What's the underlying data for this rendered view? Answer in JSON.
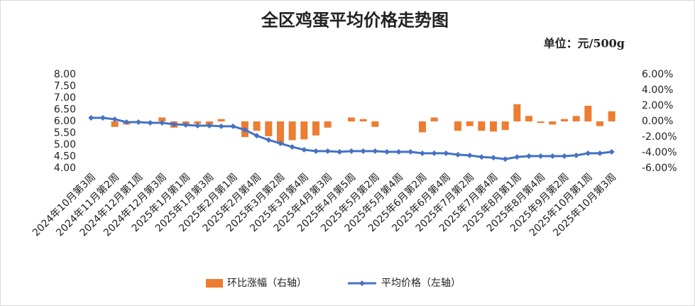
{
  "chart_data": {
    "type": "bar-line",
    "title": "全区鸡蛋平均价格走势图",
    "subtitle": "单位：元/500g",
    "categories": [
      "2024年10月第3周",
      null,
      "2024年11月第2周",
      null,
      "2024年12月第1周",
      null,
      "2024年12月第3周",
      null,
      "2025年1月第1周",
      null,
      "2025年1月第3周",
      null,
      "2025年2月第1周",
      null,
      "2025年2月第4周",
      null,
      "2025年3月第2周",
      null,
      "2025年3月第4周",
      null,
      "2025年4月第3周",
      null,
      "2025年4月第5周",
      null,
      "2025年5月第2周",
      null,
      "2025年5月第4周",
      null,
      "2025年6月第2周",
      null,
      "2025年6月第4周",
      null,
      "2025年7月第2周",
      null,
      "2025年7月第4周",
      null,
      "2025年8月第1周",
      null,
      "2025年8月第4周",
      null,
      "2025年9月第2周",
      null,
      "2025年10月第1周",
      null,
      "2025年10月第3周"
    ],
    "series": [
      {
        "name": "环比涨幅（右轴）",
        "type": "bar",
        "axis": "y2",
        "color": "#ed7d31",
        "values": [
          0,
          0,
          -0.7,
          -0.4,
          -0.1,
          0,
          0.5,
          -0.8,
          -0.4,
          -0.3,
          -0.4,
          0.3,
          0,
          -2.0,
          -1.2,
          -1.9,
          -2.8,
          -2.4,
          -2.3,
          -1.8,
          -0.8,
          0,
          0.5,
          0.3,
          -0.7,
          0,
          0,
          0,
          -1.4,
          0.5,
          0,
          -1.2,
          -0.6,
          -1.2,
          -1.3,
          -1.1,
          2.2,
          0.7,
          -0.2,
          -0.4,
          0.3,
          0.7,
          2.0,
          -0.6,
          1.3
        ]
      },
      {
        "name": "平均价格（左轴）",
        "type": "line",
        "axis": "y",
        "color": "#4472c4",
        "values": [
          6.15,
          6.15,
          6.09,
          5.97,
          5.97,
          5.94,
          5.94,
          5.88,
          5.85,
          5.82,
          5.82,
          5.79,
          5.79,
          5.64,
          5.39,
          5.21,
          5.06,
          4.91,
          4.79,
          4.73,
          4.73,
          4.7,
          4.73,
          4.73,
          4.73,
          4.7,
          4.7,
          4.7,
          4.64,
          4.64,
          4.64,
          4.58,
          4.55,
          4.48,
          4.45,
          4.39,
          4.48,
          4.52,
          4.52,
          4.52,
          4.52,
          4.55,
          4.64,
          4.64,
          4.7
        ]
      }
    ],
    "ylim": [
      4,
      8
    ],
    "yticks": [
      {
        "value": 4,
        "label": "4.00"
      },
      {
        "value": 4.5,
        "label": "4.50"
      },
      {
        "value": 5,
        "label": "5.00"
      },
      {
        "value": 5.5,
        "label": "5.50"
      },
      {
        "value": 6,
        "label": "6.00"
      },
      {
        "value": 6.5,
        "label": "6.50"
      },
      {
        "value": 7,
        "label": "7.00"
      },
      {
        "value": 7.5,
        "label": "7.50"
      },
      {
        "value": 8,
        "label": "8.00"
      }
    ],
    "y2lim": [
      -6,
      6
    ],
    "y2ticks": [
      {
        "value": -6,
        "label": "-6.00%"
      },
      {
        "value": -4,
        "label": "-4.00%"
      },
      {
        "value": -2,
        "label": "-2.00%"
      },
      {
        "value": 0,
        "label": "0.00%"
      },
      {
        "value": 2,
        "label": "2.00%"
      },
      {
        "value": 4,
        "label": "4.00%"
      },
      {
        "value": 6,
        "label": "6.00%"
      }
    ],
    "grid": false,
    "legend": "bottom"
  }
}
